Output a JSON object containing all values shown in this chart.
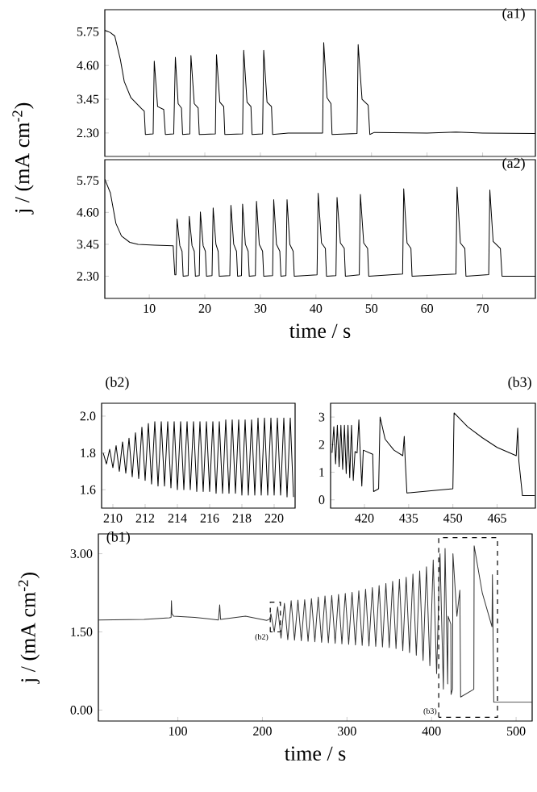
{
  "chart_data": [
    {
      "type": "line",
      "title": "(a1)",
      "ylabel": "j / (mA cm$^{-2}$)",
      "xlim": [
        2,
        79.5
      ],
      "ylim": [
        1.5,
        6.5
      ],
      "xticks": [
        10,
        20,
        30,
        40,
        50,
        60,
        70
      ],
      "yticks": [
        {
          "value": 2.3,
          "label": "2.30"
        },
        {
          "value": 3.45,
          "label": "3.45"
        },
        {
          "value": 4.6,
          "label": "4.60"
        },
        {
          "value": 5.75,
          "label": "5.75"
        }
      ],
      "tick_labels": "y",
      "series": [
        {
          "color": "#000000",
          "x": [
            2.0,
            3.0,
            3.8,
            4.8,
            5.5,
            6.7,
            8.6,
            9.1,
            9.3,
            10.7,
            10.9,
            11.5,
            12.6,
            12.9,
            14.4,
            14.7,
            15.2,
            15.8,
            16.0,
            17.3,
            17.5,
            18.1,
            18.8,
            19.0,
            21.9,
            22.1,
            22.7,
            23.4,
            23.6,
            26.8,
            27.0,
            27.6,
            28.3,
            28.5,
            30.4,
            30.6,
            31.2,
            32.0,
            32.2,
            35,
            41.2,
            41.4,
            42.0,
            42.7,
            42.9,
            47.4,
            47.6,
            48.3,
            49.4,
            49.7,
            50.5,
            60,
            65.2,
            70,
            79.5
          ],
          "values": [
            5.8,
            5.72,
            5.6,
            4.8,
            4.05,
            3.5,
            3.13,
            3.04,
            2.25,
            2.27,
            4.75,
            3.2,
            3.1,
            2.25,
            2.27,
            4.88,
            3.3,
            3.15,
            2.25,
            2.27,
            4.94,
            3.3,
            3.15,
            2.25,
            2.27,
            4.97,
            3.35,
            3.2,
            2.25,
            2.27,
            5.12,
            3.35,
            3.2,
            2.25,
            2.27,
            5.12,
            3.35,
            3.2,
            2.25,
            2.3,
            2.3,
            5.38,
            3.5,
            3.3,
            2.25,
            2.28,
            5.31,
            3.45,
            3.25,
            2.25,
            2.32,
            2.3,
            2.33,
            2.3,
            2.28
          ]
        }
      ]
    },
    {
      "type": "line",
      "title": "(a2)",
      "xlabel": "time / s",
      "xlim": [
        2,
        79.5
      ],
      "ylim": [
        1.5,
        6.5
      ],
      "xticks": [
        10,
        20,
        30,
        40,
        50,
        60,
        70
      ],
      "yticks": [
        {
          "value": 2.3,
          "label": "2.30"
        },
        {
          "value": 3.45,
          "label": "3.45"
        },
        {
          "value": 4.6,
          "label": "4.60"
        },
        {
          "value": 5.75,
          "label": "5.75"
        }
      ],
      "series": [
        {
          "color": "#000000",
          "x": [
            2.0,
            3.0,
            4.0,
            5.0,
            6.5,
            8.0,
            11,
            14.3,
            14.6,
            14.8,
            15.0,
            15.5,
            15.9,
            16.1,
            17.0,
            17.2,
            17.7,
            18.1,
            18.3,
            19.0,
            19.2,
            19.7,
            20.1,
            20.3,
            21.3,
            21.5,
            22.0,
            22.4,
            22.6,
            24.5,
            24.7,
            25.2,
            25.7,
            25.9,
            26.6,
            26.8,
            27.3,
            27.8,
            28.0,
            29.1,
            29.3,
            29.8,
            30.4,
            30.6,
            32.2,
            32.4,
            32.9,
            33.5,
            33.7,
            34.6,
            34.8,
            35.3,
            35.9,
            36.1,
            40.2,
            40.4,
            41.0,
            41.7,
            41.9,
            43.6,
            43.8,
            44.4,
            45.1,
            45.3,
            47.8,
            48.0,
            48.6,
            49.3,
            49.5,
            55.6,
            55.8,
            56.4,
            57.1,
            57.3,
            65.2,
            65.4,
            66.0,
            66.8,
            67.0,
            71.1,
            71.3,
            71.9,
            73.2,
            73.5,
            79.5
          ],
          "values": [
            5.8,
            5.3,
            4.2,
            3.75,
            3.52,
            3.45,
            3.42,
            3.4,
            2.35,
            2.35,
            4.36,
            3.4,
            3.2,
            2.3,
            2.32,
            4.46,
            3.4,
            3.2,
            2.3,
            2.32,
            4.62,
            3.4,
            3.2,
            2.3,
            2.32,
            4.76,
            3.45,
            3.2,
            2.3,
            2.32,
            4.86,
            3.45,
            3.2,
            2.3,
            2.32,
            4.9,
            3.45,
            3.2,
            2.3,
            2.32,
            5.0,
            3.45,
            3.2,
            2.3,
            2.32,
            5.06,
            3.45,
            3.2,
            2.3,
            2.32,
            5.06,
            3.45,
            3.2,
            2.3,
            2.35,
            5.29,
            3.5,
            3.3,
            2.3,
            2.32,
            5.14,
            3.5,
            3.3,
            2.3,
            2.35,
            5.25,
            3.5,
            3.3,
            2.3,
            2.38,
            5.45,
            3.5,
            3.3,
            2.3,
            2.38,
            5.51,
            3.5,
            3.3,
            2.3,
            2.36,
            5.41,
            3.55,
            3.3,
            2.3,
            2.3
          ]
        }
      ]
    },
    {
      "type": "line",
      "title": "(b2)",
      "xlim": [
        209.3,
        221.3
      ],
      "ylim": [
        1.5,
        2.07
      ],
      "xticks": [
        210,
        212,
        214,
        216,
        218,
        220
      ],
      "yticks": [
        1.6,
        1.8,
        {
          "value": 2.0,
          "label": "2.0"
        }
      ],
      "series": [
        {
          "color": "#000000",
          "x": [
            209.4,
            209.6,
            209.8,
            210.0,
            210.2,
            210.4,
            210.6,
            210.8,
            211.0,
            211.2,
            211.4,
            211.6,
            211.8,
            212.0,
            212.2,
            212.4,
            212.6,
            212.8,
            213.0,
            213.2,
            213.4,
            213.6,
            213.8,
            214.0,
            214.2,
            214.4,
            214.6,
            214.8,
            215.0,
            215.2,
            215.4,
            215.6,
            215.8,
            216.0,
            216.2,
            216.4,
            216.6,
            216.8,
            217.0,
            217.2,
            217.4,
            217.6,
            217.8,
            218.0,
            218.2,
            218.4,
            218.6,
            218.8,
            219.0,
            219.2,
            219.4,
            219.6,
            219.8,
            220.0,
            220.2,
            220.4,
            220.6,
            220.8,
            221.0,
            221.2
          ],
          "values": [
            1.8,
            1.74,
            1.82,
            1.72,
            1.84,
            1.7,
            1.86,
            1.69,
            1.88,
            1.67,
            1.91,
            1.66,
            1.94,
            1.65,
            1.96,
            1.63,
            1.97,
            1.62,
            1.97,
            1.62,
            1.97,
            1.61,
            1.97,
            1.6,
            1.97,
            1.6,
            1.97,
            1.6,
            1.97,
            1.59,
            1.97,
            1.59,
            1.97,
            1.59,
            1.97,
            1.58,
            1.97,
            1.58,
            1.98,
            1.58,
            1.98,
            1.58,
            1.98,
            1.57,
            1.98,
            1.57,
            1.98,
            1.57,
            1.99,
            1.57,
            1.99,
            1.57,
            1.99,
            1.57,
            1.99,
            1.57,
            1.99,
            1.56,
            1.99,
            1.56
          ]
        }
      ]
    },
    {
      "type": "line",
      "title": "(b3)",
      "xlim": [
        408.5,
        478
      ],
      "ylim": [
        -0.3,
        3.5
      ],
      "xticks": [
        420,
        435,
        450,
        465
      ],
      "yticks": [
        0,
        1,
        2,
        3
      ],
      "series": [
        {
          "color": "#000000",
          "x": [
            409,
            409.6,
            410.2,
            410.8,
            411.4,
            412,
            412.6,
            413.2,
            413.8,
            414.4,
            415,
            415.6,
            416.2,
            416.8,
            417.5,
            418.1,
            418.6,
            419.1,
            419.6,
            422.8,
            423.1,
            424.8,
            425.3,
            427,
            430,
            433,
            433.5,
            433.8,
            434.4,
            450,
            450.4,
            455,
            460,
            465,
            471.5,
            472,
            472.4,
            473.6,
            477.8
          ],
          "values": [
            1.7,
            2.65,
            1.3,
            2.7,
            1.2,
            2.7,
            1.1,
            2.7,
            0.95,
            2.7,
            0.8,
            2.7,
            0.7,
            1.75,
            1.7,
            2.9,
            1.6,
            0.5,
            1.8,
            1.65,
            0.3,
            0.4,
            3.0,
            2.2,
            1.8,
            1.6,
            2.3,
            1.5,
            0.25,
            0.4,
            3.15,
            2.65,
            2.25,
            1.9,
            1.6,
            2.6,
            1.4,
            0.15,
            0.15
          ]
        }
      ]
    },
    {
      "type": "line",
      "title": "(b1)",
      "xlabel": "time / s",
      "ylabel": "j / (mA cm$^{-2}$)",
      "xlim": [
        6,
        519
      ],
      "ylim": [
        -0.21,
        3.38
      ],
      "xticks": [
        100,
        200,
        300,
        400,
        500
      ],
      "yticks": [
        {
          "value": 0,
          "label": "0.00"
        },
        {
          "value": 1.5,
          "label": "1.50"
        },
        {
          "value": 3.0,
          "label": "3.00"
        }
      ],
      "annotations": [
        "(b2)",
        "(b3)"
      ],
      "series": [
        {
          "color": "#333333",
          "x": [
            6,
            60,
            90,
            92,
            92.4,
            93,
            95,
            120,
            148,
            149.5,
            150.5,
            180,
            205,
            209,
            210,
            214,
            218,
            222,
            226,
            230,
            234,
            238,
            242,
            246,
            250,
            254,
            258,
            262,
            266,
            270,
            274,
            278,
            282,
            286,
            290,
            294,
            298,
            302,
            306,
            310,
            314,
            318,
            322,
            326,
            330,
            334,
            338,
            342,
            346,
            350,
            354,
            358,
            362,
            366,
            370,
            374,
            378,
            382,
            386,
            390,
            394,
            398,
            402,
            406,
            410,
            414,
            416,
            419.1,
            419.6,
            422.8,
            423.1,
            424.8,
            425.3,
            430,
            433.5,
            434.4,
            450,
            450.4,
            460,
            471.5,
            472,
            473.6,
            519
          ],
          "values": [
            1.73,
            1.74,
            1.77,
            1.78,
            2.1,
            1.85,
            1.8,
            1.78,
            1.73,
            2.02,
            1.74,
            1.8,
            1.72,
            1.75,
            1.85,
            1.5,
            1.98,
            1.38,
            2.05,
            1.35,
            2.1,
            1.34,
            2.11,
            1.33,
            2.12,
            1.32,
            2.14,
            1.31,
            2.17,
            1.3,
            2.19,
            1.29,
            2.2,
            1.28,
            2.22,
            1.27,
            2.24,
            1.26,
            2.26,
            1.25,
            2.29,
            1.24,
            2.32,
            1.23,
            2.35,
            1.22,
            2.39,
            1.21,
            2.43,
            1.2,
            2.47,
            1.18,
            2.51,
            1.14,
            2.55,
            1.1,
            2.61,
            1.05,
            2.67,
            0.95,
            2.75,
            0.85,
            2.88,
            0.7,
            3.0,
            0.4,
            3.1,
            0.5,
            1.8,
            1.65,
            0.3,
            0.4,
            3.0,
            1.8,
            2.3,
            0.25,
            0.4,
            3.15,
            2.25,
            1.6,
            2.6,
            0.15,
            0.15
          ]
        }
      ]
    }
  ]
}
